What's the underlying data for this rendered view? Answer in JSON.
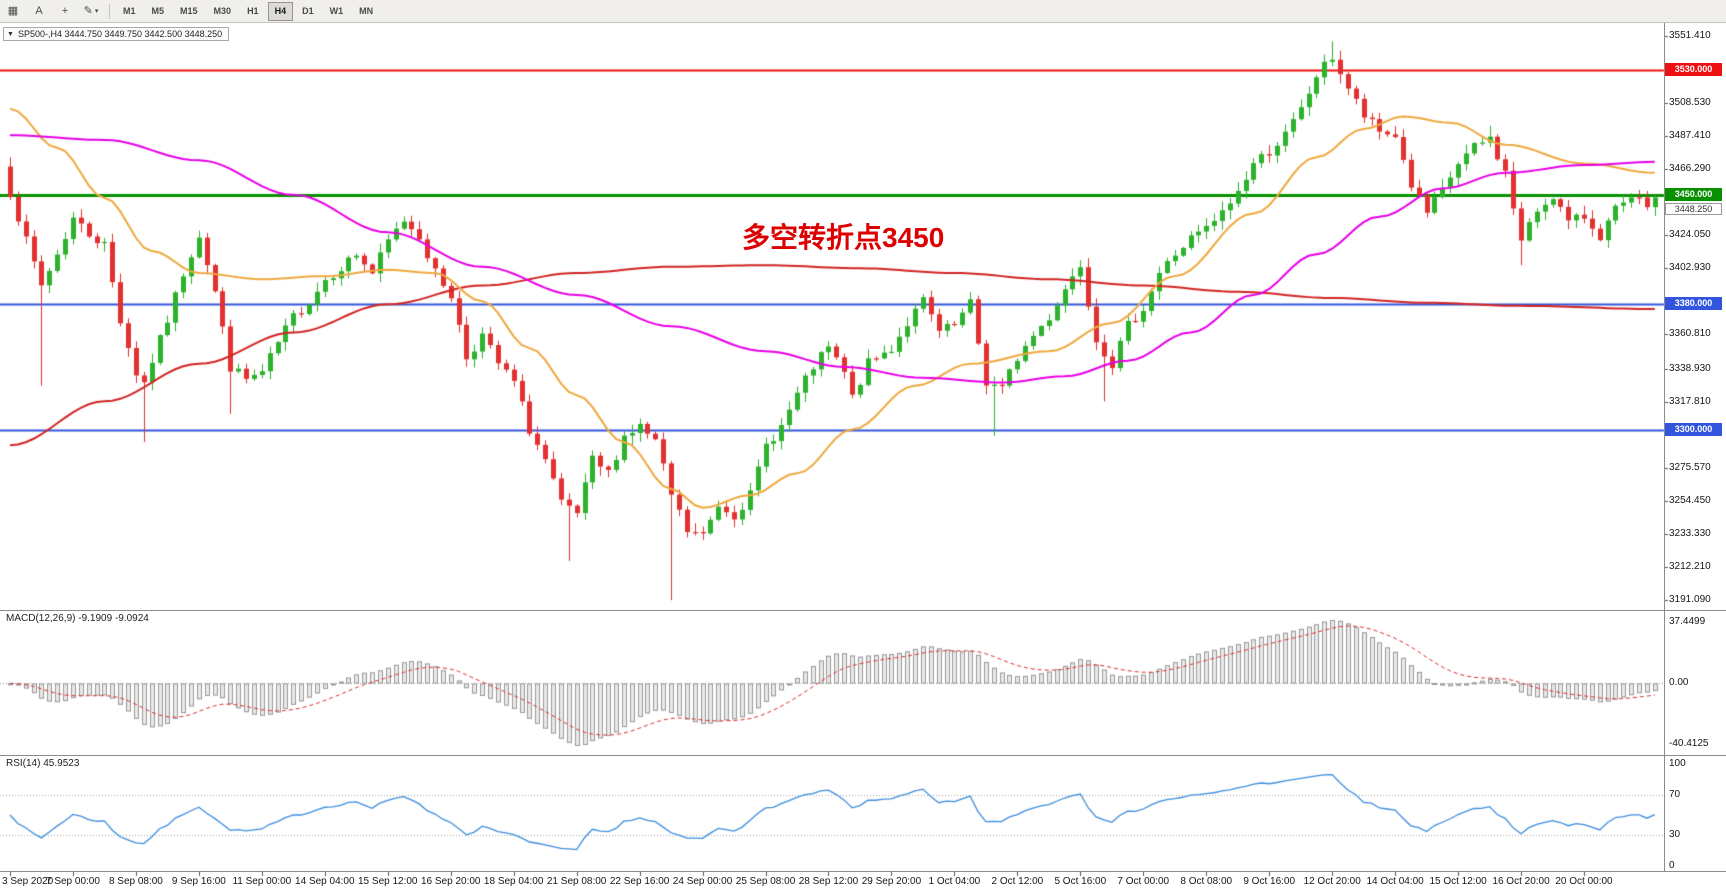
{
  "toolbar": {
    "tools": [
      {
        "id": "chart-list",
        "glyph": "▦"
      },
      {
        "id": "cursor",
        "glyph": "A"
      },
      {
        "id": "crosshair",
        "glyph": "+"
      },
      {
        "id": "draw",
        "glyph": "✎",
        "dropdown": true
      }
    ],
    "timeframes": [
      "M1",
      "M5",
      "M15",
      "M30",
      "H1",
      "H4",
      "D1",
      "W1",
      "MN"
    ],
    "active_timeframe": "H4"
  },
  "title_bar": {
    "dropdown_glyph": "▼",
    "title": "SP500-,H4 3444.750 3449.750 3442.500 3448.250"
  },
  "annotation": {
    "text": "多空转折点3450",
    "color": "#DD0000"
  },
  "macd_panel": {
    "label": "MACD(12,26,9) -9.1909 -9.0924",
    "axis_labels": [
      "37.4499",
      "0.00",
      "-40.4125"
    ]
  },
  "rsi_panel": {
    "label": "RSI(14) 45.9523",
    "axis_labels": [
      "100",
      "70",
      "30",
      "0"
    ],
    "axis_values": [
      100,
      70,
      30,
      0
    ],
    "levels": [
      70,
      30
    ],
    "period": 14,
    "value": 45.9523
  },
  "price_axis": {
    "ticks": [
      {
        "label": "3551.410",
        "value": 3551.41
      },
      {
        "label": "3508.530",
        "value": 3508.53
      },
      {
        "label": "3487.410",
        "value": 3487.41
      },
      {
        "label": "3466.290",
        "value": 3466.29
      },
      {
        "label": "3424.050",
        "value": 3424.05
      },
      {
        "label": "3402.930",
        "value": 3402.93
      },
      {
        "label": "3360.810",
        "value": 3360.81
      },
      {
        "label": "3338.930",
        "value": 3338.93
      },
      {
        "label": "3317.810",
        "value": 3317.81
      },
      {
        "label": "3275.570",
        "value": 3275.57
      },
      {
        "label": "3254.450",
        "value": 3254.45
      },
      {
        "label": "3233.330",
        "value": 3233.33
      },
      {
        "label": "3212.210",
        "value": 3212.21
      },
      {
        "label": "3191.090",
        "value": 3191.09
      }
    ]
  },
  "hlines": [
    {
      "label": "3530.000",
      "value": 3530,
      "color": "#EE1111",
      "width": 2
    },
    {
      "label": "3450.000",
      "value": 3450,
      "color": "#089000",
      "width": 3
    },
    {
      "label": "3380.000",
      "value": 3380,
      "color": "#3355DD",
      "width": 2
    },
    {
      "label": "3300.000",
      "value": 3300,
      "color": "#3355DD",
      "width": 2
    }
  ],
  "current_price": {
    "label": "3448.250",
    "value": 3448.25
  },
  "time_axis": {
    "bars_per_label": 8,
    "labels": [
      "3 Sep 2020",
      "7 Sep 00:00",
      "8 Sep 08:00",
      "9 Sep 16:00",
      "11 Sep 00:00",
      "14 Sep 04:00",
      "15 Sep 12:00",
      "16 Sep 20:00",
      "18 Sep 04:00",
      "21 Sep 08:00",
      "22 Sep 16:00",
      "24 Sep 00:00",
      "25 Sep 08:00",
      "28 Sep 12:00",
      "29 Sep 20:00",
      "1 Oct 04:00",
      "2 Oct 12:00",
      "5 Oct 16:00",
      "7 Oct 00:00",
      "8 Oct 08:00",
      "9 Oct 16:00",
      "12 Oct 20:00",
      "14 Oct 04:00",
      "15 Oct 12:00",
      "16 Oct 20:00",
      "20 Oct 00:00"
    ]
  },
  "chart_data": {
    "type": "candlestick",
    "symbol": "SP500-",
    "timeframe": "H4",
    "ohlc_latest": {
      "open": 3444.75,
      "high": 3449.75,
      "low": 3442.5,
      "close": 3448.25
    },
    "n_bars": 210,
    "first_open": 3468,
    "price_range_top": 3551.41,
    "price_range_bottom": 3191.09,
    "close_anchors": [
      [
        0,
        3452
      ],
      [
        2,
        3420
      ],
      [
        4,
        3392
      ],
      [
        6,
        3412
      ],
      [
        8,
        3435
      ],
      [
        10,
        3425
      ],
      [
        12,
        3418
      ],
      [
        14,
        3370
      ],
      [
        16,
        3336
      ],
      [
        17,
        3330
      ],
      [
        18,
        3344
      ],
      [
        20,
        3370
      ],
      [
        22,
        3400
      ],
      [
        24,
        3425
      ],
      [
        26,
        3388
      ],
      [
        28,
        3340
      ],
      [
        30,
        3332
      ],
      [
        32,
        3336
      ],
      [
        34,
        3355
      ],
      [
        36,
        3372
      ],
      [
        38,
        3382
      ],
      [
        40,
        3396
      ],
      [
        42,
        3404
      ],
      [
        44,
        3412
      ],
      [
        46,
        3400
      ],
      [
        48,
        3420
      ],
      [
        50,
        3434
      ],
      [
        52,
        3424
      ],
      [
        54,
        3400
      ],
      [
        56,
        3386
      ],
      [
        58,
        3346
      ],
      [
        60,
        3360
      ],
      [
        62,
        3342
      ],
      [
        64,
        3330
      ],
      [
        66,
        3300
      ],
      [
        68,
        3280
      ],
      [
        70,
        3252
      ],
      [
        72,
        3246
      ],
      [
        74,
        3280
      ],
      [
        76,
        3272
      ],
      [
        78,
        3296
      ],
      [
        80,
        3302
      ],
      [
        82,
        3292
      ],
      [
        84,
        3258
      ],
      [
        86,
        3235
      ],
      [
        88,
        3232
      ],
      [
        90,
        3252
      ],
      [
        92,
        3246
      ],
      [
        94,
        3258
      ],
      [
        96,
        3290
      ],
      [
        98,
        3302
      ],
      [
        100,
        3322
      ],
      [
        102,
        3340
      ],
      [
        104,
        3352
      ],
      [
        106,
        3336
      ],
      [
        107,
        3320
      ],
      [
        109,
        3342
      ],
      [
        112,
        3352
      ],
      [
        114,
        3368
      ],
      [
        116,
        3382
      ],
      [
        118,
        3362
      ],
      [
        120,
        3366
      ],
      [
        122,
        3380
      ],
      [
        124,
        3330
      ],
      [
        126,
        3326
      ],
      [
        128,
        3346
      ],
      [
        130,
        3360
      ],
      [
        132,
        3372
      ],
      [
        134,
        3390
      ],
      [
        136,
        3406
      ],
      [
        138,
        3358
      ],
      [
        140,
        3342
      ],
      [
        142,
        3366
      ],
      [
        144,
        3378
      ],
      [
        146,
        3400
      ],
      [
        148,
        3412
      ],
      [
        150,
        3422
      ],
      [
        152,
        3428
      ],
      [
        154,
        3438
      ],
      [
        156,
        3452
      ],
      [
        158,
        3470
      ],
      [
        160,
        3478
      ],
      [
        162,
        3488
      ],
      [
        164,
        3504
      ],
      [
        166,
        3526
      ],
      [
        168,
        3538
      ],
      [
        170,
        3518
      ],
      [
        172,
        3500
      ],
      [
        174,
        3490
      ],
      [
        176,
        3488
      ],
      [
        178,
        3456
      ],
      [
        180,
        3438
      ],
      [
        182,
        3452
      ],
      [
        184,
        3470
      ],
      [
        186,
        3480
      ],
      [
        188,
        3486
      ],
      [
        190,
        3464
      ],
      [
        192,
        3420
      ],
      [
        194,
        3440
      ],
      [
        196,
        3450
      ],
      [
        198,
        3432
      ],
      [
        200,
        3436
      ],
      [
        202,
        3424
      ],
      [
        204,
        3440
      ],
      [
        206,
        3446
      ],
      [
        208,
        3444
      ],
      [
        209,
        3448.25
      ]
    ],
    "wick_overrides": {
      "4": {
        "low": 3328
      },
      "17": {
        "low": 3292
      },
      "28": {
        "low": 3310
      },
      "71": {
        "low": 3216
      },
      "84": {
        "low": 3191
      },
      "125": {
        "low": 3296
      },
      "139": {
        "low": 3318
      },
      "168": {
        "high": 3548
      },
      "188": {
        "high": 3494
      },
      "192": {
        "low": 3405
      }
    },
    "ma_magenta": [
      [
        0,
        3488
      ],
      [
        12,
        3485
      ],
      [
        24,
        3472
      ],
      [
        36,
        3450
      ],
      [
        48,
        3426
      ],
      [
        60,
        3404
      ],
      [
        72,
        3386
      ],
      [
        84,
        3366
      ],
      [
        96,
        3350
      ],
      [
        106,
        3340
      ],
      [
        116,
        3333
      ],
      [
        126,
        3330
      ],
      [
        134,
        3334
      ],
      [
        142,
        3344
      ],
      [
        150,
        3362
      ],
      [
        158,
        3386
      ],
      [
        166,
        3412
      ],
      [
        174,
        3436
      ],
      [
        182,
        3454
      ],
      [
        190,
        3464
      ],
      [
        200,
        3469
      ],
      [
        209,
        3471
      ]
    ],
    "ma_orange": [
      [
        0,
        3505
      ],
      [
        6,
        3480
      ],
      [
        12,
        3448
      ],
      [
        18,
        3414
      ],
      [
        24,
        3400
      ],
      [
        32,
        3396
      ],
      [
        40,
        3398
      ],
      [
        48,
        3402
      ],
      [
        54,
        3400
      ],
      [
        60,
        3382
      ],
      [
        66,
        3352
      ],
      [
        72,
        3322
      ],
      [
        78,
        3292
      ],
      [
        84,
        3262
      ],
      [
        88,
        3250
      ],
      [
        94,
        3258
      ],
      [
        100,
        3272
      ],
      [
        107,
        3300
      ],
      [
        115,
        3328
      ],
      [
        122,
        3342
      ],
      [
        132,
        3350
      ],
      [
        140,
        3368
      ],
      [
        148,
        3398
      ],
      [
        158,
        3438
      ],
      [
        166,
        3474
      ],
      [
        172,
        3492
      ],
      [
        177,
        3500
      ],
      [
        183,
        3496
      ],
      [
        190,
        3482
      ],
      [
        200,
        3470
      ],
      [
        209,
        3464
      ]
    ],
    "ma_red": [
      [
        0,
        3290
      ],
      [
        12,
        3318
      ],
      [
        24,
        3342
      ],
      [
        36,
        3362
      ],
      [
        48,
        3380
      ],
      [
        60,
        3392
      ],
      [
        72,
        3400
      ],
      [
        84,
        3404
      ],
      [
        96,
        3405
      ],
      [
        108,
        3403
      ],
      [
        120,
        3400
      ],
      [
        132,
        3396
      ],
      [
        144,
        3392
      ],
      [
        156,
        3388
      ],
      [
        168,
        3384
      ],
      [
        180,
        3381
      ],
      [
        192,
        3379
      ],
      [
        209,
        3377
      ]
    ],
    "macd_params": {
      "fast": 12,
      "slow": 26,
      "signal": 9
    },
    "colors": {
      "up": "#2DB22D",
      "down": "#E33030",
      "ma_magenta": "#E800E8",
      "ma_orange": "#EFA93F",
      "ma_red": "#D22525",
      "macd_hist_stroke": "#999999",
      "macd_hist_fill": "rgba(153,153,153,0.22)",
      "macd_signal": "#E03030",
      "rsi_line": "#3E8EDE",
      "level_dotted": "#ABABAB"
    }
  }
}
